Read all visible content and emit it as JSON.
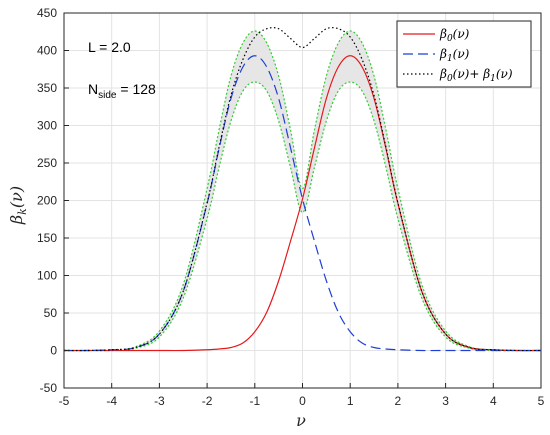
{
  "chart_data": {
    "type": "line",
    "xlabel": "ν",
    "ylabel_main": "β",
    "ylabel_sub": "k",
    "ylabel_tail": "(ν)",
    "xlim": [
      -5,
      5
    ],
    "ylim": [
      -50,
      450
    ],
    "xticks": [
      -5,
      -4,
      -3,
      -2,
      -1,
      0,
      1,
      2,
      3,
      4,
      5
    ],
    "yticks": [
      -50,
      0,
      50,
      100,
      150,
      200,
      250,
      300,
      350,
      400,
      450
    ],
    "grid": true,
    "legend_position": "top-right",
    "annotations": {
      "L_text": "L = 2.0",
      "nside_main": "N",
      "nside_sub": "side",
      "nside_tail": " = 128"
    },
    "x": [
      -5,
      -4.5,
      -4,
      -3.5,
      -3,
      -2.5,
      -2,
      -1.75,
      -1.5,
      -1.25,
      -1,
      -0.75,
      -0.5,
      -0.25,
      0,
      0.25,
      0.5,
      0.75,
      1,
      1.25,
      1.5,
      1.75,
      2,
      2.5,
      3,
      3.5,
      4,
      4.5,
      5
    ],
    "series": [
      {
        "legend": {
          "main": "β",
          "sub": "0",
          "tail": "(ν)"
        },
        "color": "#e41a1c",
        "dash": "",
        "values": [
          0,
          0,
          0,
          0,
          0,
          0,
          1,
          2,
          4,
          10,
          25,
          51,
          93,
          146,
          202,
          270,
          336,
          378,
          393,
          378,
          336,
          269,
          196,
          79,
          22,
          4,
          1,
          0,
          0
        ]
      },
      {
        "legend": {
          "main": "β",
          "sub": "1",
          "tail": "(ν)"
        },
        "color": "#1f3fd6",
        "dash": "10,5",
        "values": [
          0,
          0,
          1,
          4,
          22,
          79,
          196,
          269,
          336,
          378,
          393,
          378,
          336,
          270,
          202,
          146,
          93,
          51,
          25,
          10,
          4,
          2,
          1,
          0,
          0,
          0,
          0,
          0,
          0
        ]
      },
      {
        "legend": {
          "main": "β",
          "sub": "0",
          "mid": "(ν)+ ",
          "main2": "β",
          "sub2": "1",
          "tail": "(ν)"
        },
        "color": "#000000",
        "dash": "1.5,2.5",
        "values": [
          0,
          0,
          1,
          4,
          22,
          79,
          197,
          271,
          340,
          388,
          418,
          429,
          429,
          416,
          404,
          416,
          429,
          429,
          418,
          388,
          340,
          271,
          197,
          79,
          22,
          4,
          1,
          0,
          0
        ]
      }
    ],
    "band": {
      "color": "#e6e6e6",
      "edge_color": "#33cc33",
      "upper_values": [
        0,
        0,
        1,
        5,
        26,
        88,
        216,
        294,
        366,
        410,
        426,
        410,
        366,
        294,
        216,
        294,
        366,
        410,
        426,
        410,
        366,
        294,
        216,
        88,
        26,
        5,
        1,
        0,
        0
      ],
      "lower_values": [
        0,
        0,
        0,
        3,
        18,
        70,
        176,
        244,
        306,
        346,
        358,
        346,
        306,
        244,
        184,
        244,
        306,
        346,
        358,
        346,
        306,
        244,
        176,
        70,
        18,
        3,
        0,
        0,
        0
      ]
    }
  }
}
